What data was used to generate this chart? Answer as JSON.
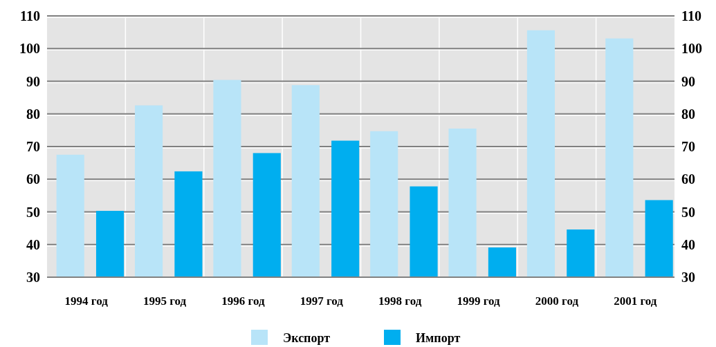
{
  "chart_data": {
    "type": "bar",
    "categories": [
      "1994 год",
      "1995 год",
      "1996 год",
      "1997 год",
      "1998 год",
      "1999 год",
      "2000 год",
      "2001 год"
    ],
    "series": [
      {
        "name": "Экспорт",
        "color": "#b8e4f8",
        "values": [
          67.5,
          82.6,
          90.4,
          88.8,
          74.7,
          75.5,
          105.6,
          103.1
        ]
      },
      {
        "name": "Импорт",
        "color": "#00aeef",
        "values": [
          50.3,
          62.4,
          68,
          71.8,
          57.8,
          39.1,
          44.6,
          53.6
        ]
      }
    ],
    "ylim": [
      30,
      110
    ],
    "yticks": [
      30,
      40,
      50,
      60,
      70,
      80,
      90,
      100,
      110
    ],
    "y2lim": [
      30,
      110
    ],
    "y2ticks": [
      30,
      40,
      50,
      60,
      70,
      80,
      90,
      100,
      110
    ],
    "grid": true,
    "legend": "bottom"
  }
}
